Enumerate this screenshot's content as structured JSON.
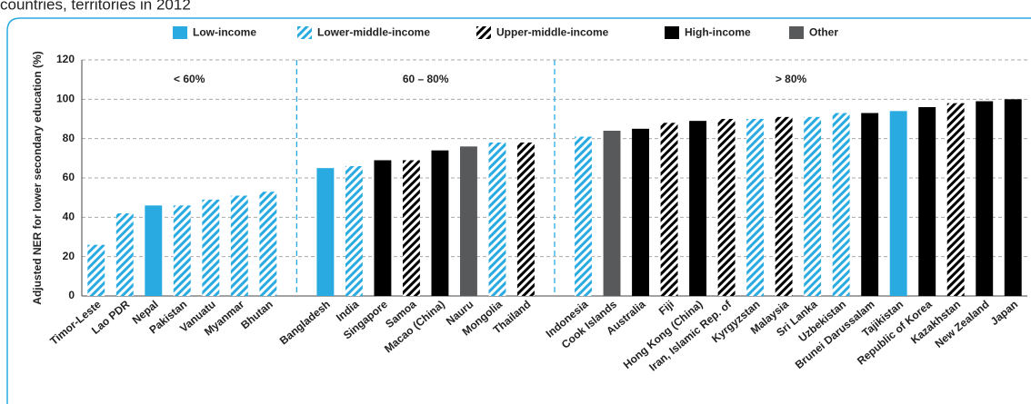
{
  "chart_data": {
    "type": "bar",
    "subtitle": "countries, territories in 2012",
    "ylabel": "Adjusted NER for lower secondary education (%)",
    "categories": [
      "Timor-Leste",
      "Lao PDR",
      "Nepal",
      "Pakistan",
      "Vanuatu",
      "Myanmar",
      "Bhutan",
      null,
      "Bangladesh",
      "India",
      "Singapore",
      "Samoa",
      "Macao (China)",
      "Nauru",
      "Mongolia",
      "Thailand",
      null,
      "Indonesia",
      "Cook Islands",
      "Australia",
      "Fiji",
      "Hong Kong (China)",
      "Iran, Islamic Rep. of",
      "Kyrgyzstan",
      "Malaysia",
      "Sri Lanka",
      "Uzbekistan",
      "Brunei Darussalam",
      "Tajikistan",
      "Republic of Korea",
      "Kazakhstan",
      "New Zealand",
      "Japan"
    ],
    "series": [
      {
        "name": "Low-income",
        "color": "#29abe2",
        "hatch": false,
        "values": [
          null,
          null,
          46,
          null,
          null,
          null,
          null,
          null,
          65,
          null,
          null,
          null,
          null,
          null,
          null,
          null,
          null,
          null,
          null,
          null,
          null,
          null,
          null,
          null,
          null,
          null,
          null,
          null,
          94,
          null,
          null,
          null,
          null
        ]
      },
      {
        "name": "Lower-middle-income",
        "color": "#29abe2",
        "hatch": true,
        "values": [
          26,
          42,
          null,
          46,
          49,
          51,
          53,
          null,
          null,
          66,
          null,
          null,
          null,
          null,
          78,
          null,
          null,
          81,
          null,
          null,
          null,
          null,
          null,
          90,
          null,
          91,
          93,
          null,
          null,
          null,
          null,
          null,
          null
        ]
      },
      {
        "name": "Upper-middle-income",
        "color": "#000000",
        "hatch": true,
        "values": [
          null,
          null,
          null,
          null,
          null,
          null,
          null,
          null,
          null,
          null,
          null,
          69,
          null,
          null,
          null,
          78,
          null,
          null,
          null,
          null,
          88,
          null,
          90,
          null,
          91,
          null,
          null,
          null,
          null,
          null,
          98,
          null,
          null
        ]
      },
      {
        "name": "High-income",
        "color": "#000000",
        "hatch": false,
        "values": [
          null,
          null,
          null,
          null,
          null,
          null,
          null,
          null,
          null,
          null,
          69,
          null,
          74,
          null,
          null,
          null,
          null,
          null,
          null,
          85,
          null,
          89,
          null,
          null,
          null,
          null,
          null,
          93,
          null,
          96,
          null,
          99,
          100
        ]
      },
      {
        "name": "Other",
        "color": "#58595b",
        "hatch": false,
        "values": [
          null,
          null,
          null,
          null,
          null,
          null,
          null,
          null,
          null,
          null,
          null,
          null,
          null,
          76,
          null,
          null,
          null,
          null,
          84,
          null,
          null,
          null,
          null,
          null,
          null,
          null,
          null,
          null,
          null,
          null,
          null,
          null,
          null
        ]
      }
    ],
    "annotations": [
      "< 60%",
      "60 – 80%",
      "> 80%"
    ],
    "annotation_color": "#29abe2",
    "ylim": [
      0,
      120
    ],
    "yticks": [
      0,
      20,
      40,
      60,
      80,
      100,
      120
    ],
    "grid": true
  }
}
